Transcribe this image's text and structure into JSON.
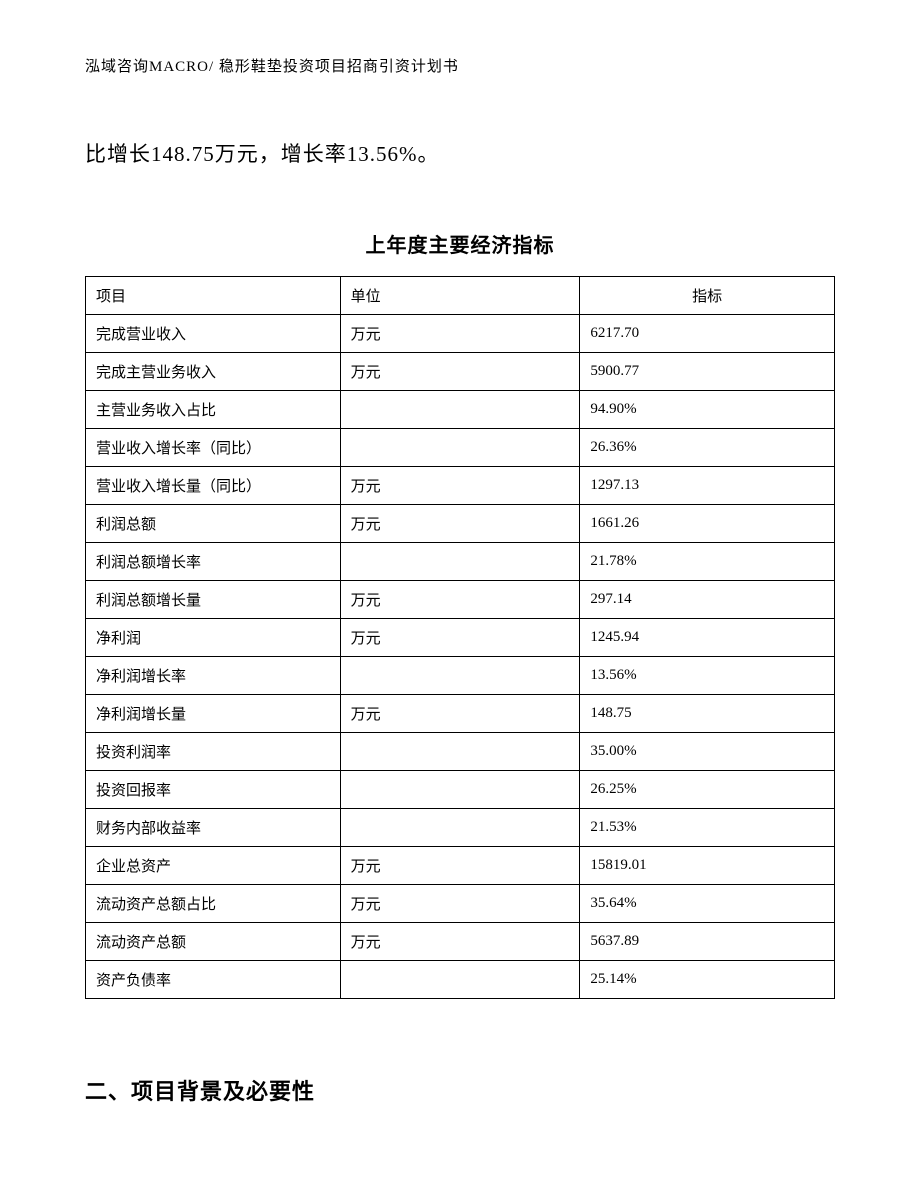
{
  "header": "泓域咨询MACRO/ 稳形鞋垫投资项目招商引资计划书",
  "intro": "比增长148.75万元，增长率13.56%。",
  "table": {
    "title": "上年度主要经济指标",
    "columns": [
      "项目",
      "单位",
      "指标"
    ],
    "rows": [
      [
        "完成营业收入",
        "万元",
        "6217.70"
      ],
      [
        "完成主营业务收入",
        "万元",
        "5900.77"
      ],
      [
        "主营业务收入占比",
        "",
        "94.90%"
      ],
      [
        "营业收入增长率（同比）",
        "",
        "26.36%"
      ],
      [
        "营业收入增长量（同比）",
        "万元",
        "1297.13"
      ],
      [
        "利润总额",
        "万元",
        "1661.26"
      ],
      [
        "利润总额增长率",
        "",
        "21.78%"
      ],
      [
        "利润总额增长量",
        "万元",
        "297.14"
      ],
      [
        "净利润",
        "万元",
        "1245.94"
      ],
      [
        "净利润增长率",
        "",
        "13.56%"
      ],
      [
        "净利润增长量",
        "万元",
        "148.75"
      ],
      [
        "投资利润率",
        "",
        "35.00%"
      ],
      [
        "投资回报率",
        "",
        "26.25%"
      ],
      [
        "财务内部收益率",
        "",
        "21.53%"
      ],
      [
        "企业总资产",
        "万元",
        "15819.01"
      ],
      [
        "流动资产总额占比",
        "万元",
        "35.64%"
      ],
      [
        "流动资产总额",
        "万元",
        "5637.89"
      ],
      [
        "资产负债率",
        "",
        "25.14%"
      ]
    ]
  },
  "section_heading": "二、项目背景及必要性"
}
